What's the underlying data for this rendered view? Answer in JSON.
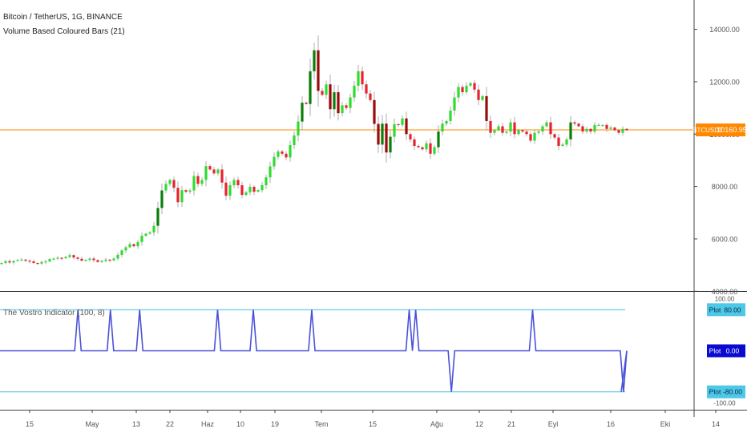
{
  "header": {
    "symbol_line": "Bitcoin / TetherUS, 1G, BINANCE",
    "study_line": "Volume Based Coloured Bars (21)",
    "indicator_line": "The Vostro Indicator (100, 8)"
  },
  "price_badge": {
    "label": "BTCUSDT",
    "value": "10160.95",
    "color": "#ff8800"
  },
  "indicator_badges": [
    {
      "label": "Plot",
      "value": "80.00",
      "color": "#4dc8e8",
      "text_color": "#0b2a44"
    },
    {
      "label": "Plot",
      "value": "0.00",
      "color": "#0a0ad0",
      "text_color": "#ffffff"
    },
    {
      "label": "Plot",
      "value": "-80.00",
      "color": "#4dc8e8",
      "text_color": "#0b2a44"
    }
  ],
  "price_axis": {
    "ticks": [
      "14000.00",
      "12000.00",
      "10000.00",
      "8000.00",
      "6000.00",
      "4000.00"
    ]
  },
  "indicator_axis": {
    "ticks": [
      "100.00",
      "-100.00"
    ]
  },
  "time_axis": {
    "labels": [
      "15",
      "May",
      "13",
      "22",
      "Haz",
      "10",
      "19",
      "Tem",
      "15",
      "Ağu",
      "12",
      "21",
      "Eyl",
      "16",
      "Eki",
      "14"
    ]
  },
  "colors": {
    "bull": "#2edc2e",
    "bull_strong": "#0a7d0a",
    "bear": "#e8212f",
    "bear_strong": "#9a0a0a",
    "price_line": "#ff8800",
    "indicator_line": "#4a52d8",
    "level_line": "#53c7e6",
    "divider": "#333333",
    "axis_text": "#555555"
  },
  "chart_data": [
    {
      "type": "candlestick",
      "title": "Bitcoin / TetherUS, 1G, BINANCE",
      "series_label": "Volume Based Coloured Bars (21)",
      "ylim": [
        3900,
        15000
      ],
      "last_price": 10160.95,
      "close": [
        5080,
        5150,
        5100,
        5160,
        5190,
        5210,
        5170,
        5140,
        5080,
        5060,
        5120,
        5140,
        5230,
        5250,
        5280,
        5260,
        5310,
        5380,
        5290,
        5240,
        5170,
        5200,
        5250,
        5190,
        5120,
        5160,
        5210,
        5180,
        5250,
        5390,
        5560,
        5680,
        5800,
        5720,
        5880,
        6120,
        6200,
        6250,
        6500,
        7180,
        7850,
        8100,
        8250,
        7950,
        7400,
        7860,
        7800,
        7850,
        8400,
        8100,
        8250,
        8780,
        8650,
        8500,
        8650,
        8150,
        7650,
        8050,
        8250,
        8050,
        7680,
        7780,
        7990,
        7800,
        7860,
        8050,
        8350,
        8770,
        9130,
        9340,
        9250,
        9110,
        9580,
        9950,
        10480,
        11200,
        11150,
        12400,
        13200,
        11650,
        11500,
        11900,
        10950,
        11600,
        10800,
        11100,
        11000,
        11400,
        11850,
        12400,
        11900,
        11550,
        11300,
        10390,
        9600,
        10400,
        9300,
        9900,
        10380,
        10350,
        10600,
        10000,
        9800,
        9550,
        9500,
        9420,
        9650,
        9250,
        9500,
        10100,
        10400,
        10500,
        10900,
        11400,
        11800,
        11600,
        11850,
        11950,
        11700,
        11300,
        11450,
        10500,
        10050,
        10150,
        10300,
        10050,
        10100,
        10450,
        10000,
        10150,
        10100,
        10000,
        9750,
        10050,
        10100,
        10300,
        10450,
        10000,
        9870,
        9550,
        9600,
        9800,
        10450,
        10400,
        10300,
        10100,
        10200,
        10100,
        10350,
        10350,
        10350,
        10200,
        10250,
        10150,
        10050,
        10200,
        10150
      ]
    },
    {
      "type": "line",
      "title": "The Vostro Indicator (100, 8)",
      "ylim": [
        -100,
        100
      ],
      "levels": [
        80,
        -80
      ],
      "last_value": 0.0,
      "values": [
        0,
        0,
        0,
        0,
        0,
        0,
        0,
        0,
        0,
        0,
        0,
        0,
        0,
        0,
        0,
        0,
        0,
        0,
        0,
        0,
        0,
        0,
        0,
        0,
        80,
        0,
        0,
        0,
        0,
        0,
        0,
        0,
        0,
        0,
        80,
        0,
        0,
        0,
        0,
        0,
        0,
        0,
        0,
        80,
        0,
        0,
        0,
        0,
        0,
        0,
        0,
        0,
        0,
        0,
        0,
        0,
        0,
        0,
        0,
        0,
        0,
        0,
        0,
        0,
        0,
        0,
        0,
        80,
        0,
        0,
        0,
        0,
        0,
        0,
        0,
        0,
        0,
        0,
        80,
        0,
        0,
        0,
        0,
        0,
        0,
        0,
        0,
        0,
        0,
        0,
        0,
        0,
        0,
        0,
        0,
        0,
        80,
        0,
        0,
        0,
        0,
        0,
        0,
        0,
        0,
        0,
        0,
        0,
        0,
        0,
        0,
        0,
        0,
        0,
        0,
        0,
        0,
        0,
        0,
        0,
        0,
        0,
        0,
        0,
        0,
        0,
        80,
        0,
        80,
        0,
        0,
        0,
        0,
        0,
        0,
        0,
        0,
        0,
        0,
        -80,
        0,
        0,
        0,
        0,
        0,
        0,
        0,
        0,
        0,
        0,
        0,
        0,
        0,
        0,
        0,
        0,
        0,
        0,
        0,
        0,
        0,
        0,
        0,
        0,
        80,
        0,
        0,
        0,
        0,
        0,
        0,
        0,
        0,
        0,
        0,
        0,
        0,
        0,
        0,
        0,
        0,
        0,
        0,
        0,
        0,
        0,
        0,
        0,
        0,
        0,
        0,
        0,
        -80,
        0
      ]
    }
  ]
}
